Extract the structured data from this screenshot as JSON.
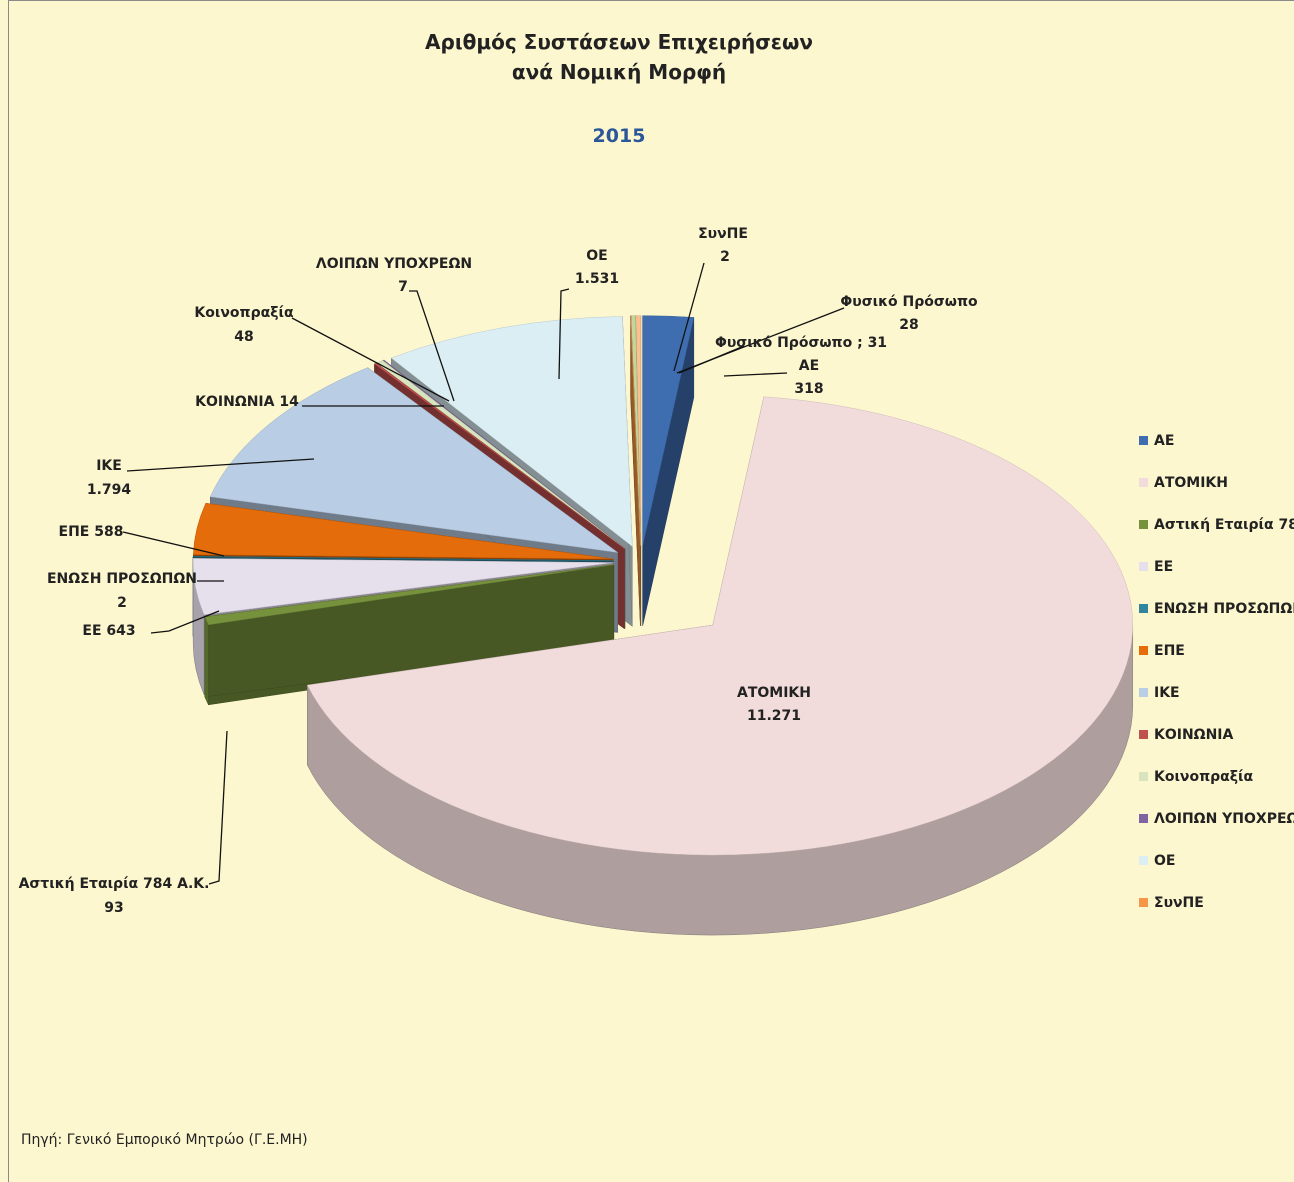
{
  "chart_data": {
    "type": "pie3d",
    "title": "Αριθμός Συστάσεων Επιχειρήσεων ανά Νομική Μορφή",
    "subtitle": "2015",
    "source": "Πηγή: Γενικό Εμπορικό Μητρώο (Γ.Ε.ΜΗ)",
    "categories": [
      "ΑΕ",
      "ΑΤΟΜΙΚΗ",
      "Αστική Εταιρία 784 Α.Κ.",
      "ΕΕ",
      "ΕΝΩΣΗ ΠΡΟΣΩΠΩΝ",
      "ΕΠΕ",
      "ΙΚΕ",
      "ΚΟΙΝΩΝΙΑ",
      "Κοινοπραξία",
      "ΛΟΙΠΩΝ ΥΠΟΧΡΕΩΝ",
      "ΟΕ",
      "ΣυνΠΕ",
      "Φυσικό Πρόσωπο",
      "Φυσικό Πρόσωπο"
    ],
    "values": [
      318,
      11271,
      93,
      643,
      2,
      588,
      1794,
      14,
      48,
      7,
      1531,
      2,
      28,
      31
    ],
    "value_labels": [
      "318",
      "11.271",
      "93",
      "643",
      "2",
      "588",
      "1.794",
      "14",
      "48",
      "7",
      "1.531",
      "2",
      "28",
      "; 31"
    ],
    "colors": [
      "#3e6db0",
      "#f2dcdb",
      "#76923c",
      "#e6e0ec",
      "#31859c",
      "#e46c0a",
      "#b9cde5",
      "#c0504d",
      "#d7e4bd",
      "#8064a2",
      "#dbeef4",
      "#f79646",
      "#c3d69b",
      "#fac090"
    ],
    "legend": {
      "position": "right",
      "items": [
        0,
        1,
        2,
        3,
        4,
        5,
        6,
        7,
        8,
        9,
        10,
        11
      ]
    }
  }
}
